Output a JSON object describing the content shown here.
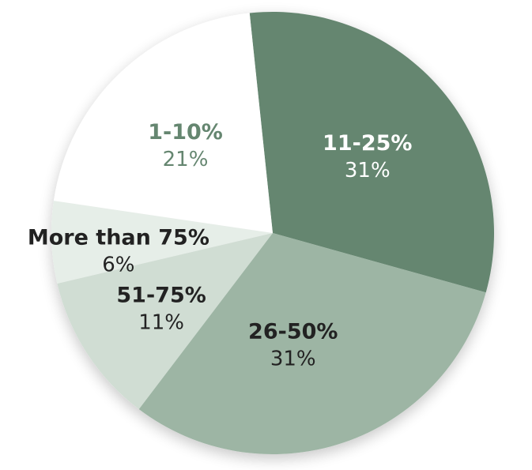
{
  "chart_data": {
    "type": "pie",
    "slices": [
      {
        "label": "11-25%",
        "value": 31,
        "value_label": "31%",
        "color": "#658670",
        "text_color": "#ffffff"
      },
      {
        "label": "26-50%",
        "value": 31,
        "value_label": "31%",
        "color": "#9db5a4",
        "text_color": "#222222"
      },
      {
        "label": "51-75%",
        "value": 11,
        "value_label": "11%",
        "color": "#d0ddd3",
        "text_color": "#222222"
      },
      {
        "label": "More than 75%",
        "value": 6,
        "value_label": "6%",
        "color": "#e6eee8",
        "text_color": "#222222"
      },
      {
        "label": "1-10%",
        "value": 21,
        "value_label": "21%",
        "color": "#ffffff",
        "text_color": "#658670"
      }
    ]
  }
}
